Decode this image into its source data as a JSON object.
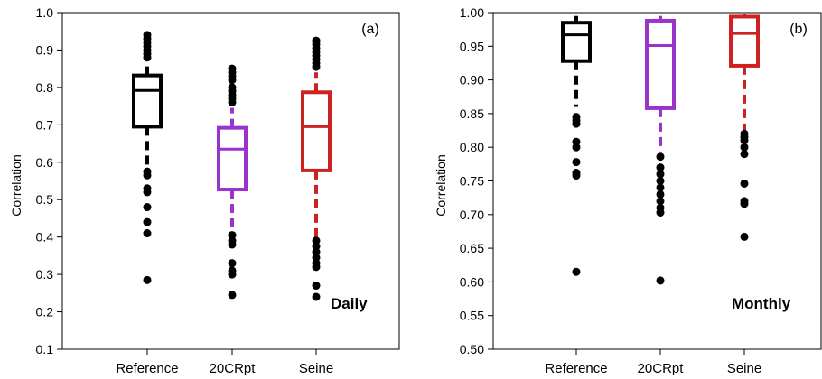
{
  "chart_data": [
    {
      "type": "box",
      "panel_tag": "(a)",
      "annotation": "Daily",
      "ylabel": "Correlation",
      "ylim": [
        0.1,
        1.0
      ],
      "yticks": [
        "0.1",
        "0.2",
        "0.3",
        "0.4",
        "0.5",
        "0.6",
        "0.7",
        "0.8",
        "0.9",
        "1.0"
      ],
      "categories": [
        "Reference",
        "20CRpt",
        "Seine"
      ],
      "colors": [
        "#000000",
        "#9933CC",
        "#CC2222"
      ],
      "boxes": [
        {
          "q1": 0.695,
          "median": 0.792,
          "q3": 0.832,
          "whisker_low": 0.585,
          "whisker_high": 0.875,
          "outliers_high": [
            0.94,
            0.93,
            0.92,
            0.91,
            0.9,
            0.89,
            0.88
          ],
          "outliers_low": [
            0.575,
            0.565,
            0.53,
            0.52,
            0.48,
            0.44,
            0.41,
            0.285
          ]
        },
        {
          "q1": 0.527,
          "median": 0.635,
          "q3": 0.692,
          "whisker_low": 0.41,
          "whisker_high": 0.745,
          "outliers_high": [
            0.85,
            0.84,
            0.83,
            0.82,
            0.8,
            0.79,
            0.78,
            0.77,
            0.76
          ],
          "outliers_low": [
            0.405,
            0.39,
            0.38,
            0.33,
            0.31,
            0.3,
            0.245
          ]
        },
        {
          "q1": 0.578,
          "median": 0.695,
          "q3": 0.787,
          "whisker_low": 0.4,
          "whisker_high": 0.84,
          "outliers_high": [
            0.925,
            0.915,
            0.905,
            0.895,
            0.885,
            0.875,
            0.865,
            0.855
          ],
          "outliers_low": [
            0.39,
            0.375,
            0.36,
            0.345,
            0.33,
            0.32,
            0.27,
            0.24
          ]
        }
      ]
    },
    {
      "type": "box",
      "panel_tag": "(b)",
      "annotation": "Monthly",
      "ylabel": "Correlation",
      "ylim": [
        0.5,
        1.0
      ],
      "yticks": [
        "0.50",
        "0.55",
        "0.60",
        "0.65",
        "0.70",
        "0.75",
        "0.80",
        "0.85",
        "0.90",
        "0.95",
        "1.00"
      ],
      "categories": [
        "Reference",
        "20CRpt",
        "Seine"
      ],
      "colors": [
        "#000000",
        "#9933CC",
        "#CC2222"
      ],
      "boxes": [
        {
          "q1": 0.928,
          "median": 0.967,
          "q3": 0.985,
          "whisker_low": 0.86,
          "whisker_high": 0.995,
          "outliers_high": [],
          "outliers_low": [
            0.845,
            0.84,
            0.835,
            0.808,
            0.8,
            0.778,
            0.762,
            0.758,
            0.615
          ]
        },
        {
          "q1": 0.858,
          "median": 0.951,
          "q3": 0.988,
          "whisker_low": 0.79,
          "whisker_high": 0.995,
          "outliers_high": [],
          "outliers_low": [
            0.786,
            0.77,
            0.76,
            0.75,
            0.74,
            0.73,
            0.72,
            0.71,
            0.703,
            0.602
          ]
        },
        {
          "q1": 0.921,
          "median": 0.969,
          "q3": 0.994,
          "whisker_low": 0.825,
          "whisker_high": 0.998,
          "outliers_high": [],
          "outliers_low": [
            0.82,
            0.815,
            0.81,
            0.8,
            0.79,
            0.746,
            0.72,
            0.716,
            0.667
          ]
        }
      ]
    }
  ]
}
